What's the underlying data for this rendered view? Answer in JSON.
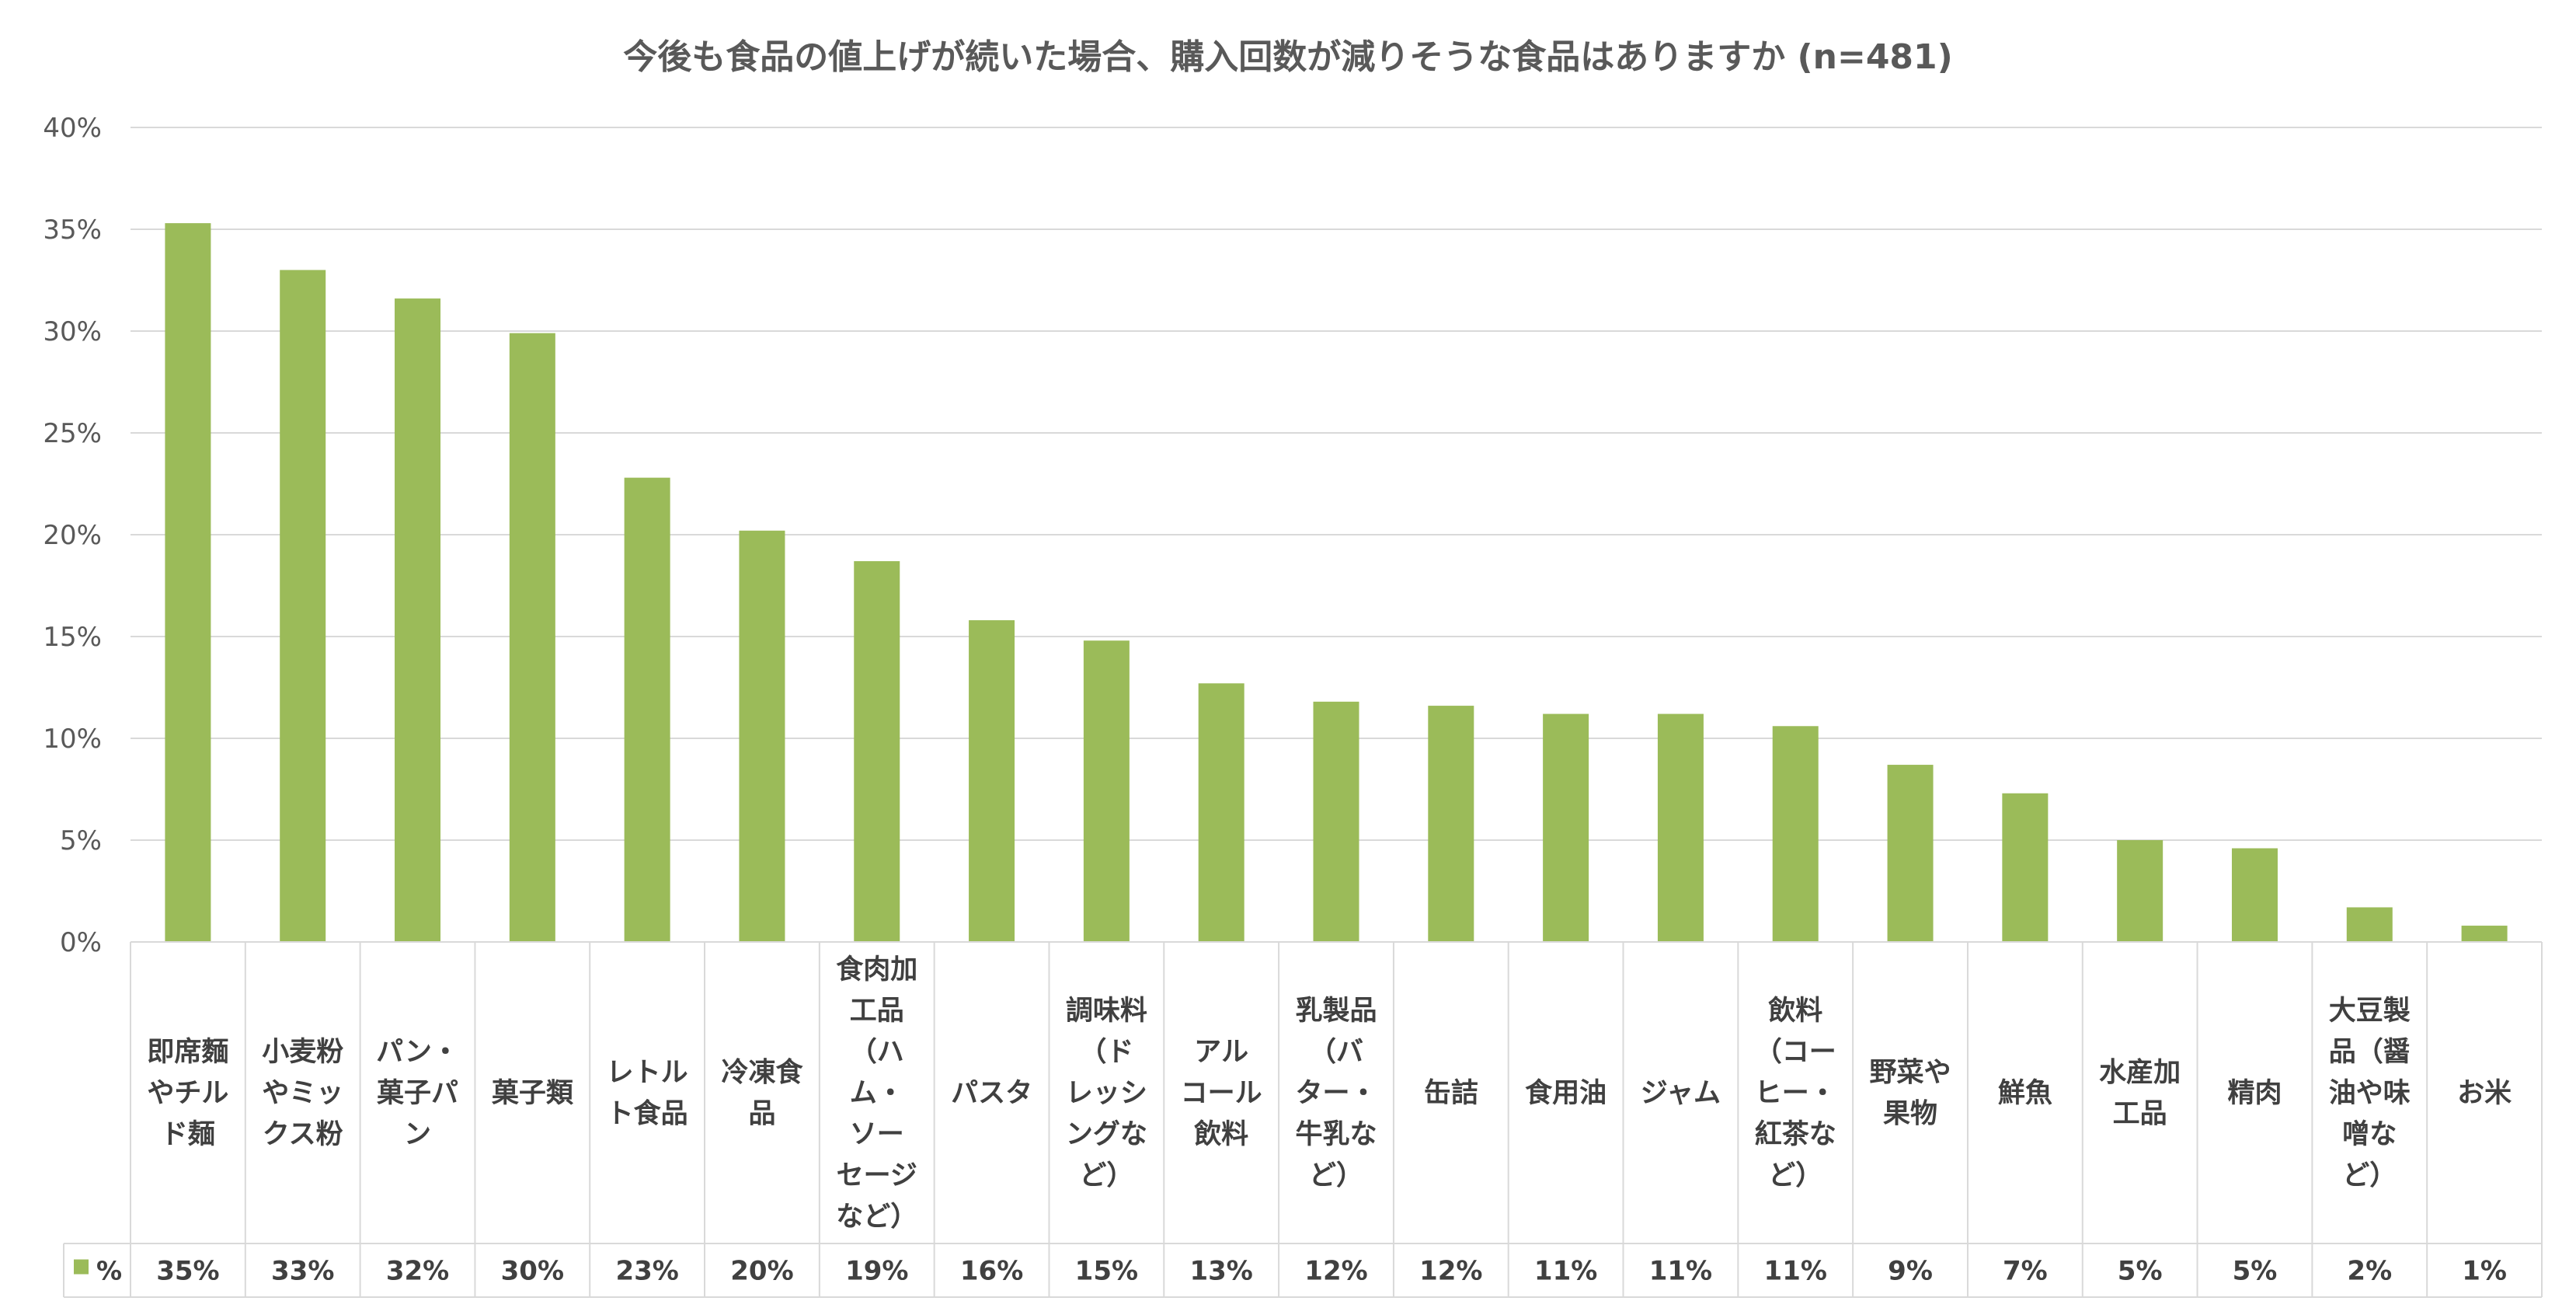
{
  "chart_data": {
    "type": "bar",
    "title": "今後も食品の値上げが続いた場合、購入回数が減りそうな食品はありますか (n=481)",
    "xlabel": "",
    "ylabel": "",
    "ylim": [
      0,
      40
    ],
    "yticks": [
      "0%",
      "5%",
      "10%",
      "15%",
      "20%",
      "25%",
      "30%",
      "35%",
      "40%"
    ],
    "grid": true,
    "legend_placement": "bottom-left (data table)",
    "bar_color": "#9BBB59",
    "categories": [
      "即席麵やチルド麺",
      "小麦粉やミックス粉",
      "パン・菓子パン",
      "菓子類",
      "レトルト食品",
      "冷凍食品",
      "食肉加工品（ハム・ソーセージなど）",
      "パスタ",
      "調味料（ドレッシングなど）",
      "アルコール飲料",
      "乳製品（バター・牛乳など）",
      "缶詰",
      "食用油",
      "ジャム",
      "飲料（コーヒー・紅茶など）",
      "野菜や果物",
      "鮮魚",
      "水産加工品",
      "精肉",
      "大豆製品（醤油や味噌など）",
      "お米"
    ],
    "category_lines": [
      [
        "即席麵",
        "やチル",
        "ド麺"
      ],
      [
        "小麦粉",
        "やミッ",
        "クス粉"
      ],
      [
        "パン・",
        "菓子パ",
        "ン"
      ],
      [
        "菓子類"
      ],
      [
        "レトル",
        "ト食品"
      ],
      [
        "冷凍食",
        "品"
      ],
      [
        "食肉加",
        "工品",
        "（ハ",
        "ム・",
        "ソー",
        "セージ",
        "など）"
      ],
      [
        "パスタ"
      ],
      [
        "調味料",
        "（ド",
        "レッシ",
        "ングな",
        "ど）"
      ],
      [
        "アル",
        "コール",
        "飲料"
      ],
      [
        "乳製品",
        "（バ",
        "ター・",
        "牛乳な",
        "ど）"
      ],
      [
        "缶詰"
      ],
      [
        "食用油"
      ],
      [
        "ジャム"
      ],
      [
        "飲料",
        "（コー",
        "ヒー・",
        "紅茶な",
        "ど）"
      ],
      [
        "野菜や",
        "果物"
      ],
      [
        "鮮魚"
      ],
      [
        "水産加",
        "工品"
      ],
      [
        "精肉"
      ],
      [
        "大豆製",
        "品（醤",
        "油や味",
        "噌な",
        "ど）"
      ],
      [
        "お米"
      ]
    ],
    "series": [
      {
        "name": "%",
        "values": [
          35.3,
          33.0,
          31.6,
          29.9,
          22.8,
          20.2,
          18.7,
          15.8,
          14.8,
          12.7,
          11.8,
          11.6,
          11.2,
          11.2,
          10.6,
          8.7,
          7.3,
          5.0,
          4.6,
          1.7,
          0.8
        ],
        "labels": [
          "35%",
          "33%",
          "32%",
          "30%",
          "23%",
          "20%",
          "19%",
          "16%",
          "15%",
          "13%",
          "12%",
          "12%",
          "11%",
          "11%",
          "11%",
          "9%",
          "7%",
          "5%",
          "5%",
          "2%",
          "1%"
        ]
      }
    ]
  }
}
